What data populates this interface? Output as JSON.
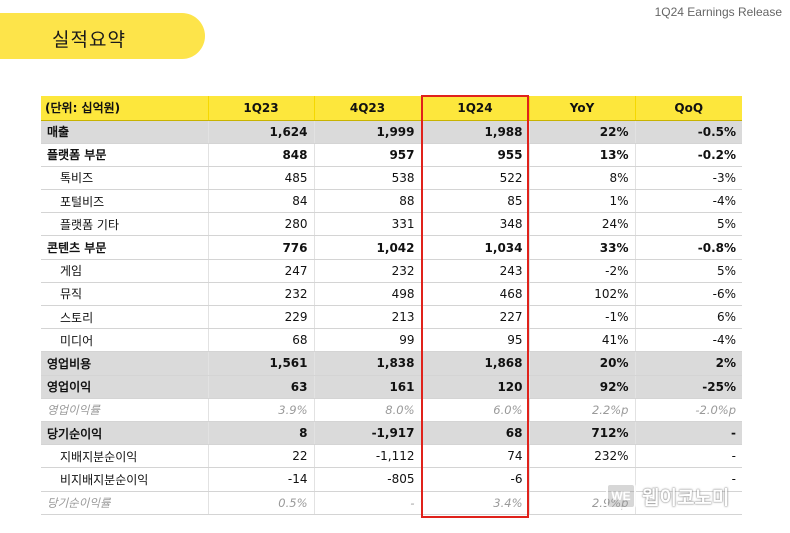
{
  "header": {
    "title": "실적요약",
    "release": "1Q24 Earnings Release"
  },
  "table": {
    "columns": [
      "(단위: 십억원)",
      "1Q23",
      "4Q23",
      "1Q24",
      "YoY",
      "QoQ"
    ],
    "rows": [
      {
        "label": "매출",
        "values": [
          "1,624",
          "1,999",
          "1,988",
          "22%",
          "-0.5%"
        ]
      },
      {
        "label": "플랫폼 부문",
        "values": [
          "848",
          "957",
          "955",
          "13%",
          "-0.2%"
        ]
      },
      {
        "label": "톡비즈",
        "values": [
          "485",
          "538",
          "522",
          "8%",
          "-3%"
        ]
      },
      {
        "label": "포털비즈",
        "values": [
          "84",
          "88",
          "85",
          "1%",
          "-4%"
        ]
      },
      {
        "label": "플랫폼 기타",
        "values": [
          "280",
          "331",
          "348",
          "24%",
          "5%"
        ]
      },
      {
        "label": "콘텐츠 부문",
        "values": [
          "776",
          "1,042",
          "1,034",
          "33%",
          "-0.8%"
        ]
      },
      {
        "label": "게임",
        "values": [
          "247",
          "232",
          "243",
          "-2%",
          "5%"
        ]
      },
      {
        "label": "뮤직",
        "values": [
          "232",
          "498",
          "468",
          "102%",
          "-6%"
        ]
      },
      {
        "label": "스토리",
        "values": [
          "229",
          "213",
          "227",
          "-1%",
          "6%"
        ]
      },
      {
        "label": "미디어",
        "values": [
          "68",
          "99",
          "95",
          "41%",
          "-4%"
        ]
      },
      {
        "label": "영업비용",
        "values": [
          "1,561",
          "1,838",
          "1,868",
          "20%",
          "2%"
        ]
      },
      {
        "label": "영업이익",
        "values": [
          "63",
          "161",
          "120",
          "92%",
          "-25%"
        ]
      },
      {
        "label": "영업이익률",
        "values": [
          "3.9%",
          "8.0%",
          "6.0%",
          "2.2%p",
          "-2.0%p"
        ]
      },
      {
        "label": "당기순이익",
        "values": [
          "8",
          "-1,917",
          "68",
          "712%",
          "-"
        ]
      },
      {
        "label": "지배지분순이익",
        "values": [
          "22",
          "-1,112",
          "74",
          "232%",
          "-"
        ]
      },
      {
        "label": "비지배지분순이익",
        "values": [
          "-14",
          "-805",
          "-6",
          "",
          "-"
        ]
      },
      {
        "label": "당기순이익률",
        "values": [
          "0.5%",
          "-",
          "3.4%",
          "2.9%p",
          ""
        ]
      }
    ]
  },
  "watermark": {
    "logo": "WE",
    "text": "웹이코노미"
  }
}
